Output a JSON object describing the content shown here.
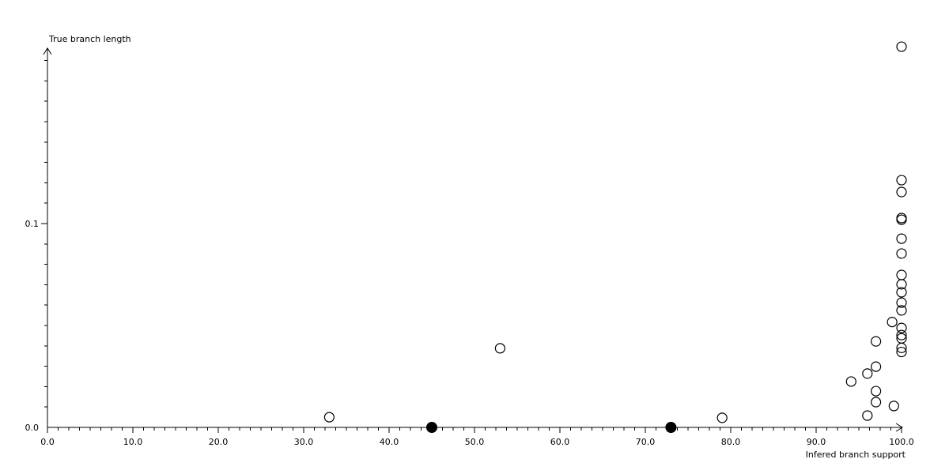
{
  "page": {
    "background_color": "#ffffff",
    "foreground_color": "#000000"
  },
  "chart_data": {
    "type": "scatter",
    "title": "",
    "xlabel": "Infered branch support",
    "ylabel": "True branch length",
    "xlim": [
      0,
      100
    ],
    "ylim": [
      0,
      0.19
    ],
    "grid": false,
    "legend": "none",
    "x_major_ticks": [
      0,
      10,
      20,
      30,
      40,
      50,
      60,
      70,
      80,
      90,
      100
    ],
    "x_tick_labels": [
      "0.0",
      "10.0",
      "20.0",
      "30.0",
      "40.0",
      "50.0",
      "60.0",
      "70.0",
      "80.0",
      "90.0",
      "100.0"
    ],
    "x_minor_tick_step": 1.25,
    "y_ticks": [
      {
        "value": 0,
        "label": "0.0"
      },
      {
        "value": 0.1,
        "label": "0.1"
      }
    ],
    "y_minor_tick_step": 0.01,
    "y_minor_tick_max": 0.18,
    "series": [
      {
        "name": "open-circle-points",
        "marker": "open-circle",
        "color": "#000000",
        "points": [
          [
            33,
            0.005
          ],
          [
            53,
            0.0388
          ],
          [
            79,
            0.0047
          ],
          [
            94.1,
            0.0225
          ],
          [
            96,
            0.0264
          ],
          [
            96,
            0.0058
          ],
          [
            97,
            0.0422
          ],
          [
            97,
            0.0298
          ],
          [
            97,
            0.0178
          ],
          [
            97,
            0.0124
          ],
          [
            98.9,
            0.0517
          ],
          [
            99.1,
            0.0105
          ],
          [
            100,
            0.1868
          ],
          [
            100,
            0.1213
          ],
          [
            100,
            0.1155
          ],
          [
            100,
            0.1027
          ],
          [
            100,
            0.1019
          ],
          [
            100,
            0.0926
          ],
          [
            100,
            0.0853
          ],
          [
            100,
            0.0748
          ],
          [
            100,
            0.0702
          ],
          [
            100,
            0.0663
          ],
          [
            100,
            0.0612
          ],
          [
            100,
            0.0574
          ],
          [
            100,
            0.0488
          ],
          [
            100,
            0.0453
          ],
          [
            100,
            0.0437
          ],
          [
            100,
            0.039
          ],
          [
            100,
            0.037
          ]
        ]
      },
      {
        "name": "filled-circle-points",
        "marker": "filled-circle",
        "color": "#000000",
        "points": [
          [
            45,
            0
          ],
          [
            73,
            0
          ]
        ]
      }
    ]
  }
}
